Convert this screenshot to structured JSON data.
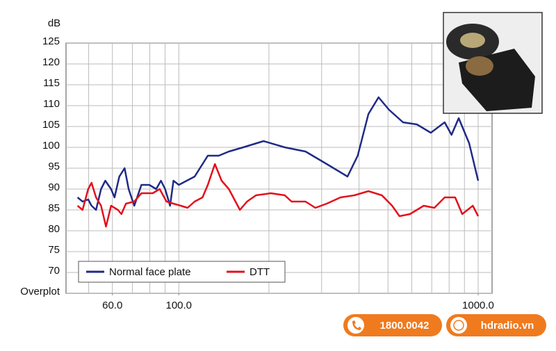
{
  "chart_data": {
    "type": "line",
    "y_label": "dB",
    "xscale": "log",
    "grid": true,
    "xlim": [
      42,
      1113
    ],
    "ylim": [
      65,
      125
    ],
    "yticks": [
      {
        "value": 65,
        "label": "Overplot"
      },
      70,
      75,
      80,
      85,
      90,
      95,
      100,
      105,
      110,
      115,
      120,
      125
    ],
    "xticks": [
      {
        "value": 60,
        "label": "60.0"
      },
      {
        "value": 100,
        "label": "100.0"
      },
      {
        "value": 1000,
        "label": "1000.0"
      }
    ],
    "xgrid": [
      50,
      60,
      70,
      80,
      90,
      100,
      200,
      300,
      400,
      500,
      600,
      700,
      800,
      900,
      1000
    ],
    "legend": "lower left",
    "series": [
      {
        "name": "Normal face plate",
        "color": "#1f2a86",
        "x": [
          45.9,
          47.7,
          49.8,
          51.1,
          52.9,
          55.0,
          56.8,
          59.4,
          61,
          63.3,
          65.9,
          68,
          71,
          75,
          79.7,
          84,
          87.2,
          90,
          93.5,
          96,
          100,
          113,
          125,
          136,
          147,
          164,
          192,
          226,
          265,
          312,
          366,
          396,
          430,
          465,
          504,
          561,
          624,
          695,
          773,
          815,
          861,
          933,
          1000
        ],
        "values": [
          88,
          87,
          87.5,
          86,
          85,
          90,
          92,
          90,
          88,
          93,
          95,
          90,
          86,
          91,
          91,
          90,
          92,
          90,
          86,
          92,
          91,
          93,
          98,
          98,
          99,
          100,
          101.5,
          100,
          99,
          96,
          93,
          98,
          108,
          112,
          109,
          106,
          105.5,
          103.5,
          106,
          103,
          107,
          101,
          92
        ]
      },
      {
        "name": "DTT",
        "color": "#e3101b",
        "x": [
          45.9,
          47.7,
          49.8,
          51.1,
          52.9,
          55.0,
          57.1,
          59.4,
          62.6,
          64.3,
          66.6,
          71,
          75,
          81.8,
          86.3,
          91,
          96,
          101.5,
          107,
          113,
          120,
          125,
          132,
          139,
          147,
          160,
          169,
          181,
          203,
          226,
          238,
          265,
          286,
          312,
          347,
          386,
          430,
          477,
          516,
          546,
          592,
          658,
          714,
          773,
          838,
          885,
          960,
          1000
        ],
        "values": [
          86,
          85,
          90,
          91.5,
          88,
          86,
          81,
          86,
          85,
          84,
          86.5,
          87,
          89,
          89,
          90,
          87,
          86.5,
          86,
          85.5,
          87,
          88,
          91,
          96,
          92,
          90,
          85,
          87,
          88.5,
          89,
          88.5,
          87,
          87,
          85.5,
          86.5,
          88,
          88.5,
          89.5,
          88.5,
          86,
          83.5,
          84,
          86,
          85.5,
          88,
          88,
          84,
          86,
          83.5
        ]
      }
    ]
  },
  "badges": {
    "phone": "1800.0042",
    "website": "hdradio.vn"
  }
}
